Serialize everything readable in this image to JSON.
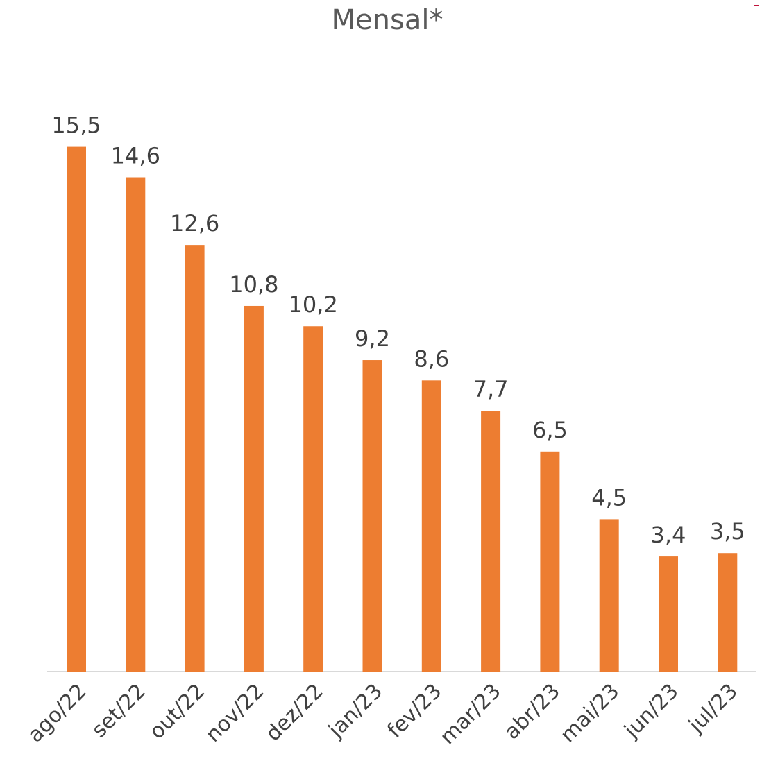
{
  "chart_data": {
    "type": "bar",
    "title": "Mensal*",
    "categories": [
      "ago/22",
      "set/22",
      "out/22",
      "nov/22",
      "dez/22",
      "jan/23",
      "fev/23",
      "mar/23",
      "abr/23",
      "mai/23",
      "jun/23",
      "jul/23"
    ],
    "values": [
      15.5,
      14.6,
      12.6,
      10.8,
      10.2,
      9.2,
      8.6,
      7.7,
      6.5,
      4.5,
      3.4,
      3.5
    ],
    "value_labels": [
      "15,5",
      "14,6",
      "12,6",
      "10,8",
      "10,2",
      "9,2",
      "8,6",
      "7,7",
      "6,5",
      "4,5",
      "3,4",
      "3,5"
    ],
    "color": "#ED7D31"
  }
}
